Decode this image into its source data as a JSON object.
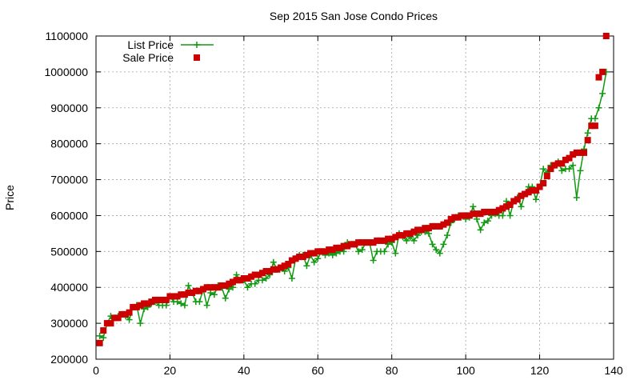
{
  "chart_data": {
    "type": "scatter",
    "title": "Sep 2015 San Jose Condo Prices",
    "ylabel": "Price",
    "xlabel": "",
    "xlim": [
      0,
      140
    ],
    "ylim": [
      200000,
      1100000
    ],
    "xticks": [
      0,
      20,
      40,
      60,
      80,
      100,
      120,
      140
    ],
    "yticks": [
      200000,
      300000,
      400000,
      500000,
      600000,
      700000,
      800000,
      900000,
      1000000,
      1100000
    ],
    "grid": true,
    "legend_position": "top-left",
    "colors": {
      "list": "#119911",
      "sale": "#cc0000"
    },
    "series": [
      {
        "name": "List Price",
        "style": "line-plus",
        "values": [
          265000,
          260000,
          300000,
          320000,
          315000,
          320000,
          325000,
          320000,
          310000,
          345000,
          350000,
          300000,
          340000,
          345000,
          355000,
          360000,
          350000,
          350000,
          350000,
          375000,
          360000,
          360000,
          355000,
          350000,
          405000,
          385000,
          360000,
          360000,
          395000,
          350000,
          385000,
          380000,
          405000,
          400000,
          370000,
          395000,
          400000,
          435000,
          420000,
          420000,
          400000,
          410000,
          410000,
          420000,
          420000,
          425000,
          435000,
          470000,
          450000,
          455000,
          445000,
          455000,
          425000,
          480000,
          490000,
          490000,
          460000,
          490000,
          470000,
          480000,
          500000,
          490000,
          495000,
          490000,
          495000,
          500000,
          500000,
          525000,
          520000,
          520000,
          500000,
          505000,
          525000,
          525000,
          475000,
          500000,
          500000,
          500000,
          520000,
          525000,
          495000,
          550000,
          540000,
          530000,
          540000,
          530000,
          545000,
          555000,
          555000,
          550000,
          520000,
          505000,
          495000,
          520000,
          545000,
          580000,
          590000,
          600000,
          600000,
          590000,
          595000,
          625000,
          590000,
          560000,
          580000,
          585000,
          600000,
          605000,
          600000,
          600000,
          640000,
          600000,
          640000,
          650000,
          625000,
          660000,
          680000,
          680000,
          645000,
          680000,
          730000,
          720000,
          740000,
          740000,
          750000,
          725000,
          730000,
          730000,
          740000,
          650000,
          725000,
          785000,
          830000,
          870000,
          870000,
          900000,
          940000,
          1000000
        ],
        "x_start": 1
      },
      {
        "name": "Sale Price",
        "style": "square",
        "values": [
          245000,
          280000,
          300000,
          300000,
          315000,
          315000,
          325000,
          325000,
          330000,
          345000,
          345000,
          350000,
          355000,
          355000,
          360000,
          365000,
          365000,
          365000,
          365000,
          375000,
          375000,
          375000,
          380000,
          380000,
          385000,
          385000,
          390000,
          390000,
          395000,
          400000,
          400000,
          400000,
          400000,
          405000,
          405000,
          410000,
          415000,
          420000,
          420000,
          425000,
          425000,
          430000,
          435000,
          435000,
          440000,
          445000,
          445000,
          450000,
          450000,
          455000,
          460000,
          465000,
          475000,
          480000,
          485000,
          485000,
          490000,
          495000,
          495000,
          500000,
          500000,
          500000,
          505000,
          505000,
          510000,
          510000,
          515000,
          515000,
          520000,
          520000,
          525000,
          525000,
          525000,
          525000,
          525000,
          530000,
          530000,
          530000,
          535000,
          535000,
          540000,
          545000,
          545000,
          550000,
          550000,
          555000,
          560000,
          560000,
          565000,
          565000,
          570000,
          570000,
          570000,
          575000,
          580000,
          590000,
          595000,
          595000,
          600000,
          600000,
          600000,
          605000,
          605000,
          605000,
          610000,
          610000,
          610000,
          610000,
          615000,
          620000,
          625000,
          630000,
          640000,
          645000,
          655000,
          660000,
          665000,
          670000,
          670000,
          680000,
          690000,
          710000,
          730000,
          740000,
          745000,
          745000,
          755000,
          760000,
          770000,
          775000,
          775000,
          775000,
          810000,
          850000,
          850000,
          985000,
          1000000,
          1100000
        ],
        "x_start": 1
      }
    ]
  }
}
